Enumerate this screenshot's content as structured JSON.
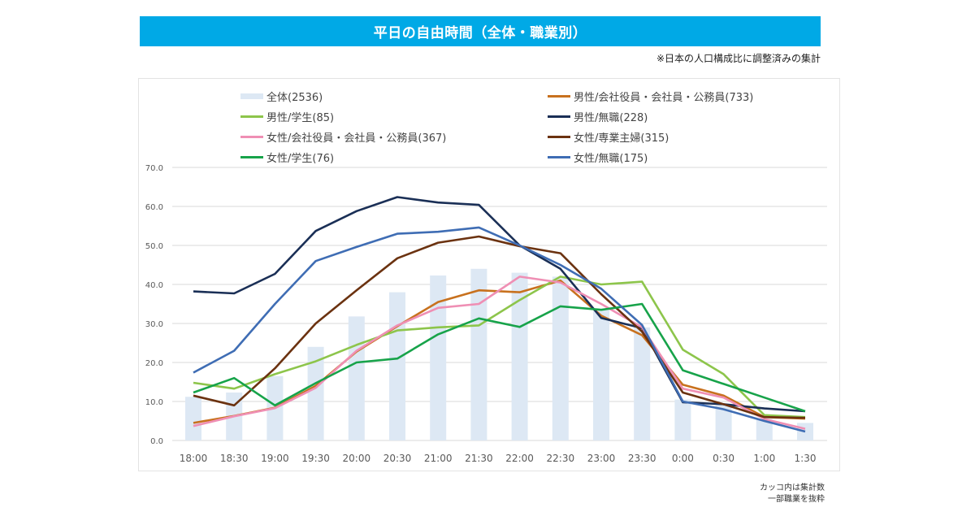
{
  "header": {
    "title": "平日の自由時間（全体・職業別）",
    "note": "※日本の人口構成比に調整済みの集計"
  },
  "footer": {
    "note_line1": "カッコ内は集計数",
    "note_line2": "一部職業を抜粋"
  },
  "chart_data": {
    "type": "bar+line",
    "title": "平日の自由時間（全体・職業別）",
    "xlabel": "",
    "ylabel": "",
    "ylim": [
      0,
      70
    ],
    "yticks": [
      0,
      10,
      20,
      30,
      40,
      50,
      60,
      70
    ],
    "ytick_labels": [
      "0.0",
      "10.0",
      "20.0",
      "30.0",
      "40.0",
      "50.0",
      "60.0",
      "70.0"
    ],
    "grid": true,
    "legend_position": "top",
    "categories": [
      "18:00",
      "18:30",
      "19:00",
      "19:30",
      "20:00",
      "20:30",
      "21:00",
      "21:30",
      "22:00",
      "22:30",
      "23:00",
      "23:30",
      "0:00",
      "0:30",
      "1:00",
      "1:30"
    ],
    "series": [
      {
        "name": "全体(2536)",
        "kind": "bar",
        "color": "#dde8f4",
        "values": [
          11.2,
          12.3,
          16.5,
          24.0,
          31.8,
          38.0,
          42.3,
          44.0,
          43.0,
          42.0,
          33.5,
          29.0,
          10.5,
          9.0,
          5.5,
          4.5
        ]
      },
      {
        "name": "男性/会社役員・会社員・公務員(733)",
        "kind": "line",
        "color": "#c8711e",
        "values": [
          4.5,
          6.3,
          8.4,
          14.0,
          22.8,
          29.3,
          35.5,
          38.5,
          38.0,
          41.0,
          32.0,
          27.0,
          14.3,
          11.5,
          6.0,
          5.6
        ]
      },
      {
        "name": "男性/学生(85)",
        "kind": "line",
        "color": "#8dc54b",
        "values": [
          14.8,
          13.3,
          17.0,
          20.3,
          24.5,
          28.2,
          29.0,
          29.5,
          36.0,
          42.0,
          40.0,
          40.7,
          23.3,
          17.0,
          6.5,
          6.0
        ]
      },
      {
        "name": "男性/無職(228)",
        "kind": "line",
        "color": "#1a2f56",
        "values": [
          38.2,
          37.7,
          42.7,
          53.7,
          58.8,
          62.4,
          61.0,
          60.4,
          50.0,
          44.0,
          31.4,
          28.8,
          9.8,
          9.3,
          8.2,
          7.5
        ]
      },
      {
        "name": "女性/会社役員・会社員・公務員(367)",
        "kind": "line",
        "color": "#ef8fb4",
        "values": [
          3.7,
          6.2,
          8.3,
          13.5,
          23.0,
          29.5,
          34.0,
          35.0,
          42.0,
          40.5,
          35.0,
          29.0,
          13.3,
          11.0,
          5.5,
          3.0
        ]
      },
      {
        "name": "女性/専業主婦(315)",
        "kind": "line",
        "color": "#6b3210",
        "values": [
          11.5,
          9.0,
          18.5,
          30.0,
          38.5,
          46.7,
          50.7,
          52.3,
          49.8,
          48.0,
          37.5,
          27.9,
          12.3,
          9.3,
          6.0,
          5.8
        ]
      },
      {
        "name": "女性/学生(76)",
        "kind": "line",
        "color": "#17a34a",
        "values": [
          12.3,
          16.0,
          9.0,
          14.7,
          20.0,
          21.0,
          27.2,
          31.3,
          29.1,
          34.4,
          33.5,
          35.0,
          18.0,
          14.5,
          11.0,
          7.5
        ]
      },
      {
        "name": "女性/無職(175)",
        "kind": "line",
        "color": "#3f6db4",
        "values": [
          17.4,
          23.0,
          35.0,
          46.0,
          49.6,
          53.0,
          53.5,
          54.6,
          50.0,
          45.0,
          38.9,
          29.6,
          10.0,
          8.0,
          5.0,
          2.3
        ]
      }
    ],
    "legend_order": [
      0,
      1,
      2,
      3,
      4,
      5,
      6,
      7
    ]
  }
}
